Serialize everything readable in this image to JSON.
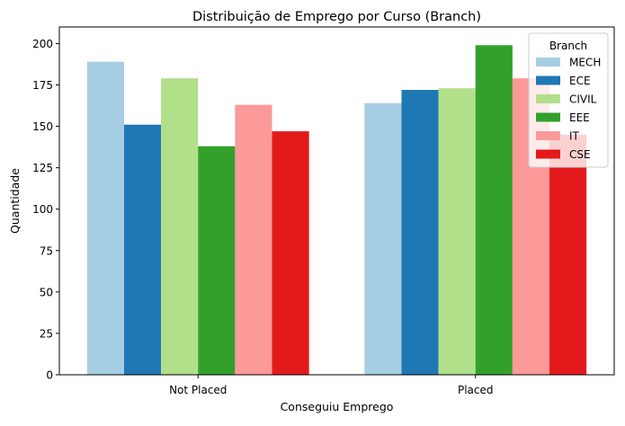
{
  "chart_data": {
    "type": "bar",
    "title": "Distribuição de Emprego por Curso (Branch)",
    "xlabel": "Conseguiu Emprego",
    "ylabel": "Quantidade",
    "categories": [
      "Not Placed",
      "Placed"
    ],
    "ylim": [
      0,
      210
    ],
    "yticks": [
      0,
      25,
      50,
      75,
      100,
      125,
      150,
      175,
      200
    ],
    "legend": {
      "title": "Branch",
      "placement": "top-right"
    },
    "grid": false,
    "series": [
      {
        "name": "MECH",
        "color": "#a6cee3",
        "values": [
          189,
          164
        ]
      },
      {
        "name": "ECE",
        "color": "#1f78b4",
        "values": [
          151,
          172
        ]
      },
      {
        "name": "CIVIL",
        "color": "#b2df8a",
        "values": [
          179,
          173
        ]
      },
      {
        "name": "EEE",
        "color": "#33a02c",
        "values": [
          138,
          199
        ]
      },
      {
        "name": "IT",
        "color": "#fb9a99",
        "values": [
          163,
          179
        ]
      },
      {
        "name": "CSE",
        "color": "#e31a1c",
        "values": [
          147,
          145
        ]
      }
    ]
  }
}
